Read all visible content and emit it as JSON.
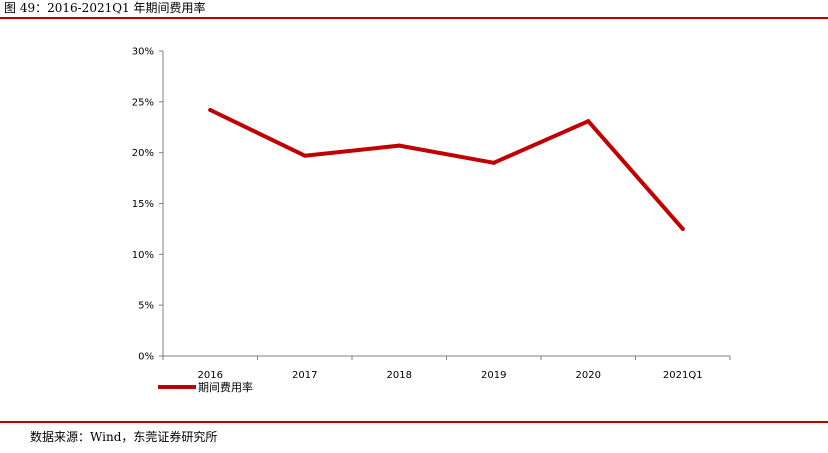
{
  "figure": {
    "title": "图 49：2016-2021Q1 年期间费用率",
    "source": "数据来源：Wind，东莞证券研究所"
  },
  "colors": {
    "rule": "#c00000",
    "series": "#c00000",
    "axis": "#808080"
  },
  "chart_data": {
    "type": "line",
    "title": "",
    "xlabel": "",
    "ylabel": "",
    "categories": [
      "2016",
      "2017",
      "2018",
      "2019",
      "2020",
      "2021Q1"
    ],
    "series": [
      {
        "name": "期间费用率",
        "values": [
          24.2,
          19.7,
          20.7,
          19.0,
          23.1,
          12.5
        ]
      }
    ],
    "ylim": [
      0,
      30
    ],
    "yticks": [
      0,
      5,
      10,
      15,
      20,
      25,
      30
    ],
    "ytick_labels": [
      "0%",
      "5%",
      "10%",
      "15%",
      "20%",
      "25%",
      "30%"
    ],
    "grid": false,
    "legend_position": "bottom-left"
  }
}
